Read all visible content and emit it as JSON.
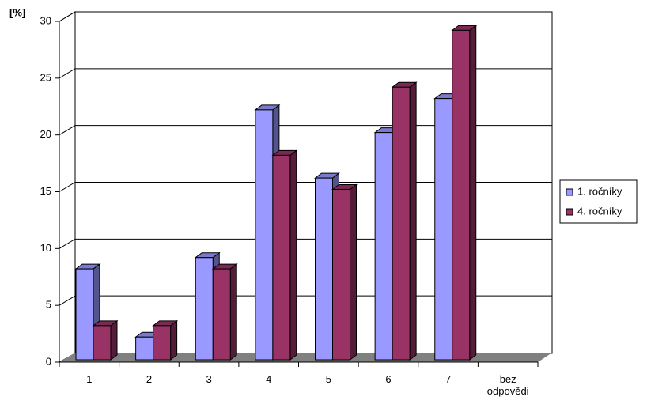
{
  "chart_data": {
    "type": "bar3d",
    "y_label": "[%]",
    "categories": [
      "1",
      "2",
      "3",
      "4",
      "5",
      "6",
      "7",
      "bez odpovědi"
    ],
    "series": [
      {
        "name": "1. ročníky",
        "color": "#9999ff",
        "values": [
          8,
          2,
          9,
          22,
          16,
          20,
          23,
          null
        ]
      },
      {
        "name": "4. ročníky",
        "color": "#993366",
        "values": [
          3,
          3,
          8,
          18,
          15,
          24,
          29,
          null
        ]
      }
    ],
    "ylim": [
      0,
      30
    ],
    "yticks": [
      0,
      5,
      10,
      15,
      20,
      25,
      30
    ],
    "grid": true
  }
}
